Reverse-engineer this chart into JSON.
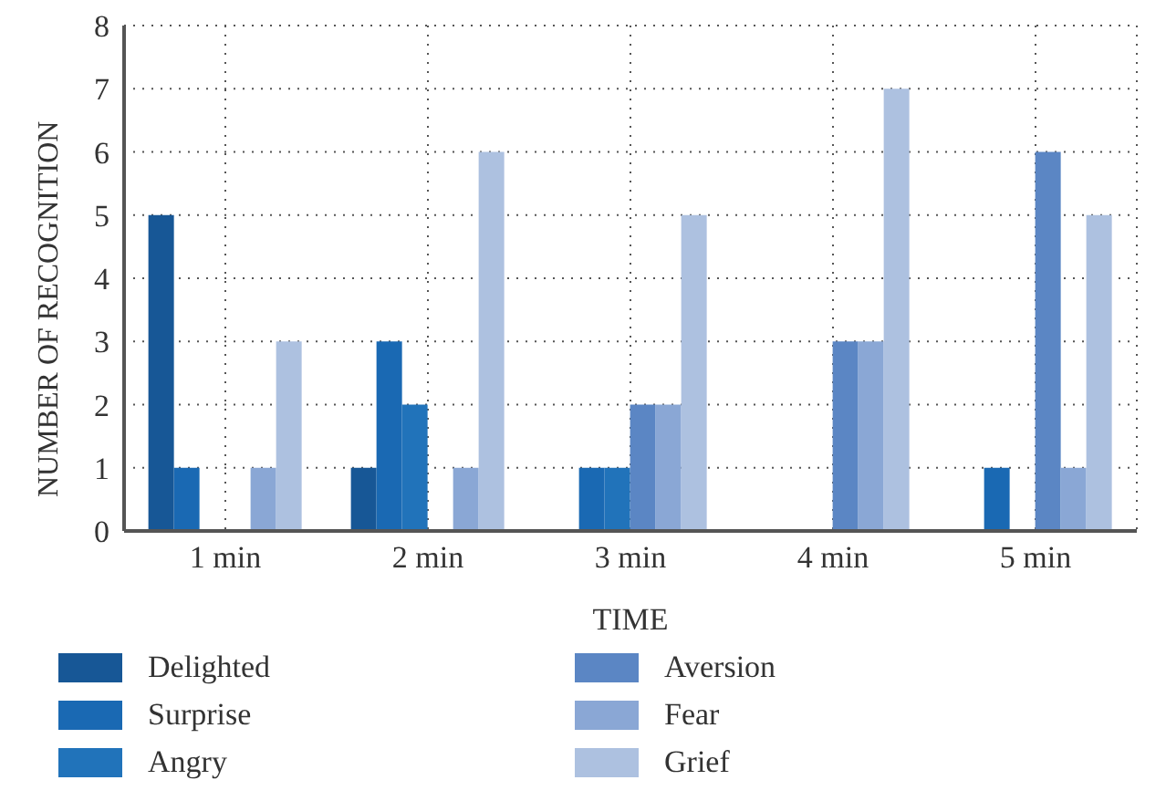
{
  "chart_data": {
    "type": "bar",
    "xlabel": "TIME",
    "ylabel": "NUMBER OF RECOGNITION",
    "categories": [
      "1 min",
      "2 min",
      "3 min",
      "4 min",
      "5 min"
    ],
    "series": [
      {
        "name": "Delighted",
        "color": "#175796",
        "values": [
          5,
          1,
          0,
          0,
          0
        ]
      },
      {
        "name": "Surprise",
        "color": "#1a69b3",
        "values": [
          1,
          3,
          1,
          0,
          1
        ]
      },
      {
        "name": "Angry",
        "color": "#2173ba",
        "values": [
          0,
          2,
          1,
          0,
          0
        ]
      },
      {
        "name": "Aversion",
        "color": "#5b86c4",
        "values": [
          0,
          0,
          2,
          3,
          6
        ]
      },
      {
        "name": "Fear",
        "color": "#8aa7d5",
        "values": [
          1,
          1,
          2,
          3,
          1
        ]
      },
      {
        "name": "Grief",
        "color": "#adc1e0",
        "values": [
          3,
          6,
          5,
          7,
          5
        ]
      }
    ],
    "ylim": [
      0,
      8
    ],
    "yticks": [
      0,
      1,
      2,
      3,
      4,
      5,
      6,
      7,
      8
    ],
    "grid": true,
    "legend": "bottom"
  }
}
